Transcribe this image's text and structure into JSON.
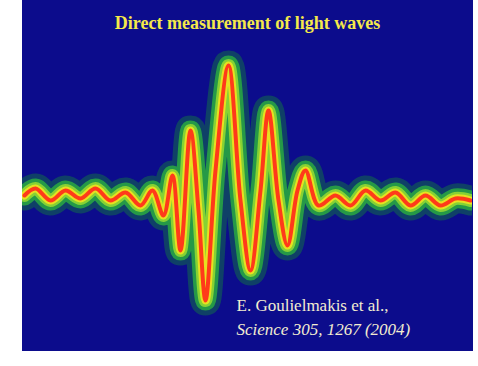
{
  "chart_data": {
    "type": "line",
    "title": "Direct measurement of light waves",
    "annotations": [
      "E. Goulielmakis et al.,",
      "Science 305, 1267 (2004)"
    ],
    "x": [
      24,
      35,
      50,
      65,
      80,
      95,
      110,
      125,
      140,
      152,
      163,
      172,
      180,
      190,
      198,
      205,
      215,
      228,
      240,
      250,
      260,
      268,
      278,
      287,
      297,
      305,
      318,
      335,
      350,
      365,
      380,
      395,
      410,
      425,
      440,
      455,
      470
    ],
    "values": [
      5,
      12,
      0,
      10,
      2,
      12,
      0,
      8,
      -5,
      10,
      -15,
      25,
      -50,
      70,
      -10,
      -100,
      30,
      135,
      0,
      -70,
      10,
      90,
      0,
      -45,
      10,
      30,
      -5,
      5,
      -5,
      10,
      0,
      8,
      -5,
      5,
      -5,
      2,
      0
    ],
    "color": "#ff3a1a",
    "xlim": [
      22,
      472
    ],
    "ylim": [
      -150,
      200
    ],
    "tick_labels": false
  }
}
